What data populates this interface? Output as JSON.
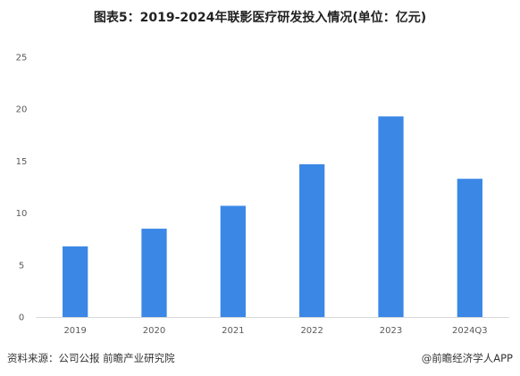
{
  "chart_data": {
    "type": "bar",
    "title": "图表5：2019-2024年联影医疗研发投入情况(单位：亿元)",
    "categories": [
      "2019",
      "2020",
      "2021",
      "2022",
      "2023",
      "2024Q3"
    ],
    "values": [
      6.8,
      8.5,
      10.7,
      14.7,
      19.3,
      13.3
    ],
    "ylim": [
      0,
      25
    ],
    "yticks": [
      0,
      5,
      10,
      15,
      20,
      25
    ],
    "xlabel": "",
    "ylabel": "",
    "grid": false,
    "bar_color": "#3a87e6",
    "axis_color": "#d9d9d9"
  },
  "footer": {
    "source": "资料来源：公司公报 前瞻产业研究院",
    "brand": "@前瞻经济学人APP"
  }
}
